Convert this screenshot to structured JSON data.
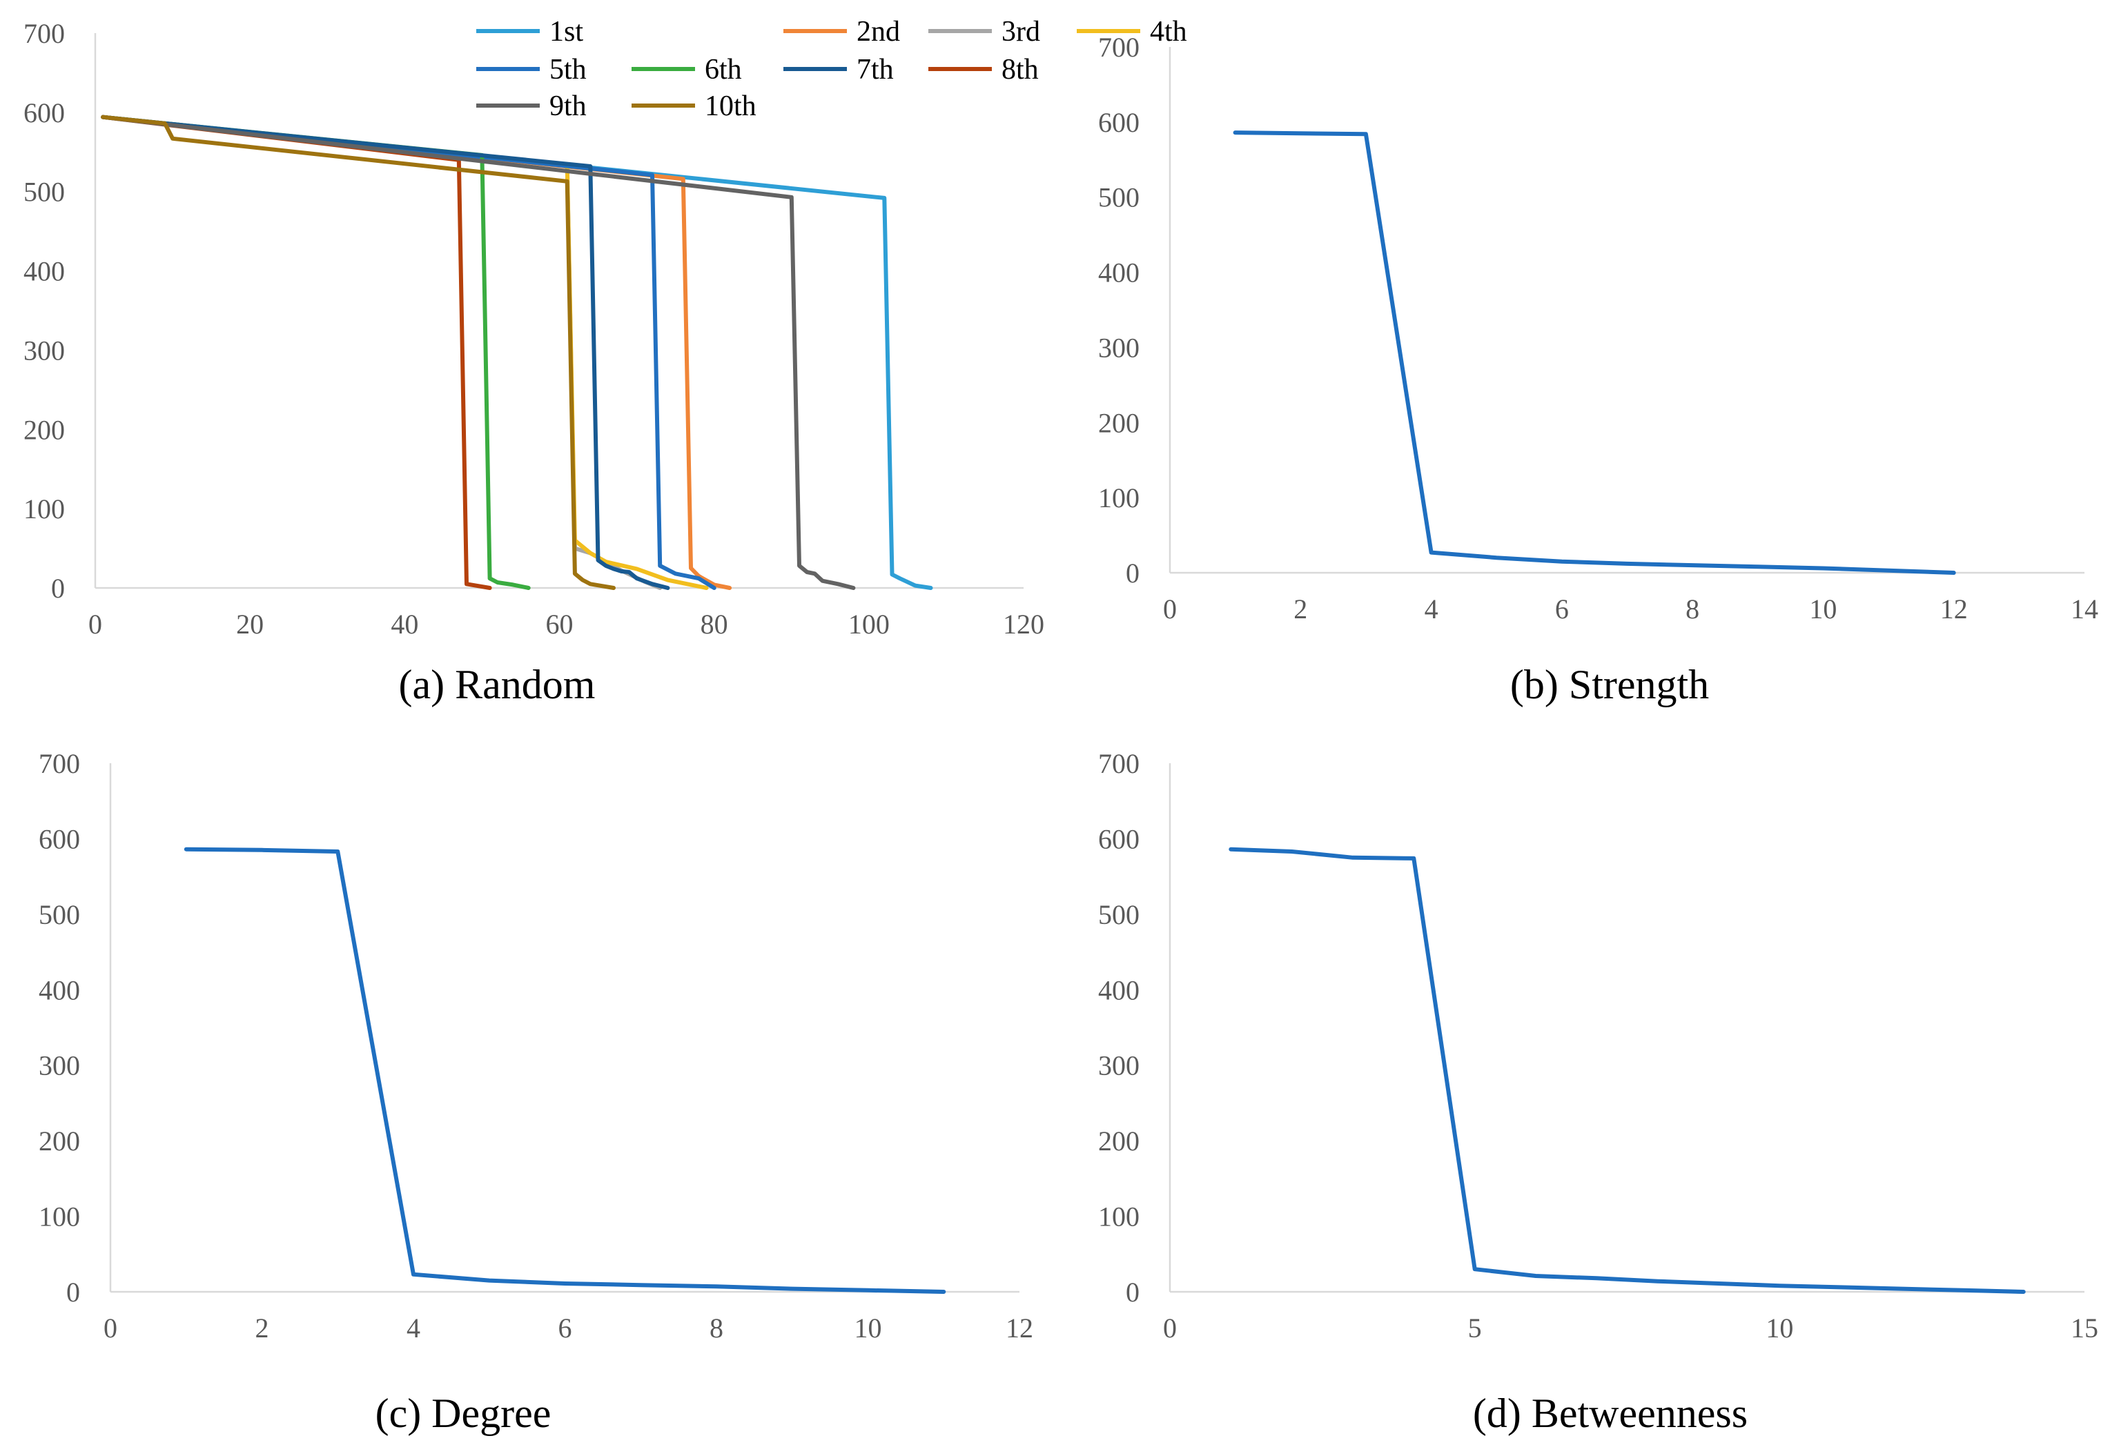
{
  "colors": {
    "axis": "#d9d9d9",
    "tick_text": "#595959",
    "single_series": "#1f6fc0"
  },
  "chart_data": [
    {
      "id": "random",
      "type": "line",
      "caption": "(a) Random",
      "xlim": [
        0,
        120
      ],
      "ylim": [
        0,
        700
      ],
      "xticks": [
        0,
        20,
        40,
        60,
        80,
        100,
        120
      ],
      "yticks": [
        0,
        100,
        200,
        300,
        400,
        500,
        600,
        700
      ],
      "grid": false,
      "legend": "top",
      "series": [
        {
          "name": "1st",
          "color": "#2e9fd6",
          "x": [
            1,
            102,
            103,
            104,
            106,
            108
          ],
          "y": [
            594,
            492,
            17,
            12,
            3,
            0
          ]
        },
        {
          "name": "2nd",
          "color": "#f08537",
          "x": [
            1,
            76,
            77,
            78,
            80,
            82
          ],
          "y": [
            594,
            516,
            25,
            15,
            4,
            0
          ]
        },
        {
          "name": "3rd",
          "color": "#a6a6a6",
          "x": [
            1,
            61,
            62,
            64,
            68,
            71,
            73
          ],
          "y": [
            594,
            534,
            50,
            44,
            22,
            8,
            0
          ]
        },
        {
          "name": "4th",
          "color": "#f2be1e",
          "x": [
            1,
            61,
            62,
            64,
            66,
            70,
            74,
            79
          ],
          "y": [
            594,
            534,
            60,
            44,
            33,
            24,
            10,
            0
          ]
        },
        {
          "name": "5th",
          "color": "#2270c0",
          "x": [
            1,
            72,
            73,
            75,
            78,
            80
          ],
          "y": [
            594,
            521,
            28,
            18,
            12,
            0
          ]
        },
        {
          "name": "6th",
          "color": "#3aac40",
          "x": [
            1,
            50,
            51,
            52,
            54,
            56
          ],
          "y": [
            594,
            546,
            12,
            7,
            4,
            0
          ]
        },
        {
          "name": "7th",
          "color": "#185a92",
          "x": [
            1,
            64,
            65,
            66,
            67,
            68,
            69,
            70,
            72,
            74
          ],
          "y": [
            594,
            532,
            35,
            28,
            24,
            21,
            20,
            12,
            5,
            0
          ]
        },
        {
          "name": "8th",
          "color": "#b5410c",
          "x": [
            1,
            47,
            48,
            51
          ],
          "y": [
            594,
            540,
            5,
            0
          ]
        },
        {
          "name": "9th",
          "color": "#636363",
          "x": [
            1,
            90,
            91,
            92,
            93,
            94,
            96,
            98
          ],
          "y": [
            594,
            493,
            28,
            20,
            18,
            9,
            5,
            0
          ]
        },
        {
          "name": "10th",
          "color": "#9e7310",
          "x": [
            1,
            9,
            10,
            61,
            62,
            63,
            64,
            67
          ],
          "y": [
            594,
            586,
            567,
            513,
            18,
            10,
            5,
            0
          ]
        }
      ]
    },
    {
      "id": "strength",
      "type": "line",
      "caption": "(b) Strength",
      "xlim": [
        0,
        14
      ],
      "ylim": [
        0,
        700
      ],
      "xticks": [
        0,
        2,
        4,
        6,
        8,
        10,
        12,
        14
      ],
      "yticks": [
        0,
        100,
        200,
        300,
        400,
        500,
        600,
        700
      ],
      "grid": false,
      "series": [
        {
          "color": "#1f6fc0",
          "x": [
            1,
            2,
            3,
            4,
            5,
            6,
            7,
            8,
            9,
            10,
            11,
            12
          ],
          "y": [
            586,
            585,
            584,
            27,
            20,
            15,
            12,
            10,
            8,
            6,
            3,
            0
          ]
        }
      ]
    },
    {
      "id": "degree",
      "type": "line",
      "caption": "(c) Degree",
      "xlim": [
        0,
        12
      ],
      "ylim": [
        0,
        700
      ],
      "xticks": [
        0,
        2,
        4,
        6,
        8,
        10,
        12
      ],
      "yticks": [
        0,
        100,
        200,
        300,
        400,
        500,
        600,
        700
      ],
      "grid": false,
      "series": [
        {
          "color": "#1f6fc0",
          "x": [
            1,
            2,
            3,
            4,
            5,
            6,
            7,
            8,
            9,
            10,
            11
          ],
          "y": [
            586,
            585,
            583,
            23,
            15,
            11,
            9,
            7,
            4,
            2,
            0
          ]
        }
      ]
    },
    {
      "id": "betweenness",
      "type": "line",
      "caption": "(d) Betweenness",
      "xlim": [
        0,
        15
      ],
      "ylim": [
        0,
        700
      ],
      "xticks": [
        0,
        5,
        10,
        15
      ],
      "yticks": [
        0,
        100,
        200,
        300,
        400,
        500,
        600,
        700
      ],
      "grid": false,
      "series": [
        {
          "color": "#1f6fc0",
          "x": [
            1,
            2,
            3,
            4,
            5,
            6,
            7,
            8,
            9,
            10,
            11,
            12,
            13,
            14
          ],
          "y": [
            586,
            583,
            575,
            574,
            30,
            21,
            18,
            14,
            11,
            8,
            6,
            4,
            2,
            0
          ]
        }
      ]
    }
  ]
}
